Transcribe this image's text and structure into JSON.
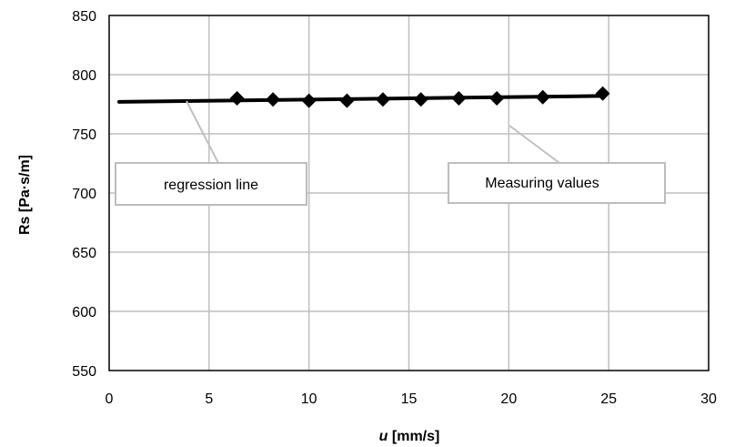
{
  "chart_data": {
    "type": "scatter",
    "title": "",
    "xlabel_italic": "u",
    "xlabel_rest": " [mm/s]",
    "ylabel": "Rs [Pa·s/m]",
    "xlim": [
      0,
      30
    ],
    "ylim": [
      550,
      850
    ],
    "x_ticks": [
      0,
      5,
      10,
      15,
      20,
      25,
      30
    ],
    "y_ticks": [
      550,
      600,
      650,
      700,
      750,
      800,
      850
    ],
    "x_tick_labels": [
      "0",
      "5",
      "10",
      "15",
      "20",
      "25",
      "30"
    ],
    "y_tick_labels": [
      "550",
      "600",
      "650",
      "700",
      "750",
      "800",
      "850"
    ],
    "grid": true,
    "series": [
      {
        "kind": "markers",
        "marker": "diamond",
        "color": "#000000",
        "x": [
          6.4,
          8.2,
          10.0,
          11.9,
          13.7,
          15.6,
          17.5,
          19.4,
          21.7,
          24.7
        ],
        "y": [
          780,
          779,
          778,
          778,
          779,
          779,
          780,
          780,
          781,
          784
        ]
      },
      {
        "kind": "line",
        "color": "#000000",
        "x": [
          0.5,
          24.7
        ],
        "y": [
          777,
          782
        ]
      }
    ],
    "annotations": [
      {
        "name": "regression-line-callout",
        "text": "regression line"
      },
      {
        "name": "measuring-values-callout",
        "text": "Measuring values"
      }
    ]
  }
}
